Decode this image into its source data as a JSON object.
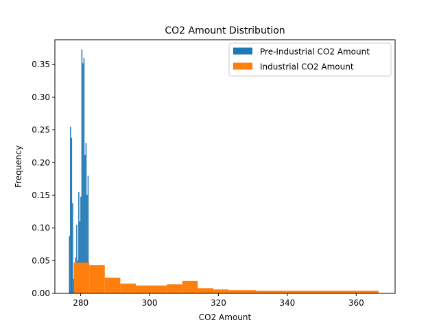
{
  "chart_data": {
    "type": "bar",
    "title": "CO2 Amount Distribution",
    "xlabel": "CO2 Amount",
    "ylabel": "Frequency",
    "xlim": [
      272.5,
      371.3
    ],
    "ylim": [
      0,
      0.388
    ],
    "xticks": [
      280,
      300,
      320,
      340,
      360
    ],
    "yticks": [
      0.0,
      0.05,
      0.1,
      0.15,
      0.2,
      0.25,
      0.3,
      0.35
    ],
    "ytick_labels": [
      "0.00",
      "0.05",
      "0.10",
      "0.15",
      "0.20",
      "0.25",
      "0.30",
      "0.35"
    ],
    "legend_placement": "top-right",
    "series": [
      {
        "name": "Pre-Industrial CO2 Amount",
        "color": "#1f77b4",
        "bins": [
          {
            "x0": 276.6,
            "x1": 276.9,
            "value": 0.088
          },
          {
            "x0": 276.9,
            "x1": 277.2,
            "value": 0.255
          },
          {
            "x0": 277.2,
            "x1": 277.5,
            "value": 0.238
          },
          {
            "x0": 277.5,
            "x1": 277.8,
            "value": 0.138
          },
          {
            "x0": 277.8,
            "x1": 278.1,
            "value": 0.022
          },
          {
            "x0": 278.1,
            "x1": 278.4,
            "value": 0.0
          },
          {
            "x0": 278.4,
            "x1": 278.7,
            "value": 0.055
          },
          {
            "x0": 278.7,
            "x1": 279.0,
            "value": 0.105
          },
          {
            "x0": 279.0,
            "x1": 279.3,
            "value": 0.05
          },
          {
            "x0": 279.3,
            "x1": 279.6,
            "value": 0.155
          },
          {
            "x0": 279.6,
            "x1": 279.9,
            "value": 0.11
          },
          {
            "x0": 279.9,
            "x1": 280.2,
            "value": 0.148
          },
          {
            "x0": 280.2,
            "x1": 280.5,
            "value": 0.373
          },
          {
            "x0": 280.5,
            "x1": 280.8,
            "value": 0.352
          },
          {
            "x0": 280.8,
            "x1": 281.1,
            "value": 0.36
          },
          {
            "x0": 281.1,
            "x1": 281.4,
            "value": 0.212
          },
          {
            "x0": 281.4,
            "x1": 281.7,
            "value": 0.23
          },
          {
            "x0": 281.7,
            "x1": 282.0,
            "value": 0.151
          },
          {
            "x0": 282.0,
            "x1": 282.3,
            "value": 0.18
          }
        ]
      },
      {
        "name": "Industrial CO2 Amount",
        "color": "#ff7f0e",
        "bins": [
          {
            "x0": 278.0,
            "x1": 282.5,
            "value": 0.047
          },
          {
            "x0": 282.5,
            "x1": 287.0,
            "value": 0.043
          },
          {
            "x0": 287.0,
            "x1": 291.5,
            "value": 0.024
          },
          {
            "x0": 291.5,
            "x1": 296.0,
            "value": 0.015
          },
          {
            "x0": 296.0,
            "x1": 300.5,
            "value": 0.012
          },
          {
            "x0": 300.5,
            "x1": 305.0,
            "value": 0.012
          },
          {
            "x0": 305.0,
            "x1": 309.5,
            "value": 0.014
          },
          {
            "x0": 309.5,
            "x1": 314.0,
            "value": 0.019
          },
          {
            "x0": 314.0,
            "x1": 318.5,
            "value": 0.008
          },
          {
            "x0": 318.5,
            "x1": 323.0,
            "value": 0.006
          },
          {
            "x0": 323.0,
            "x1": 331.0,
            "value": 0.005
          },
          {
            "x0": 331.0,
            "x1": 366.5,
            "value": 0.004
          }
        ]
      }
    ]
  }
}
